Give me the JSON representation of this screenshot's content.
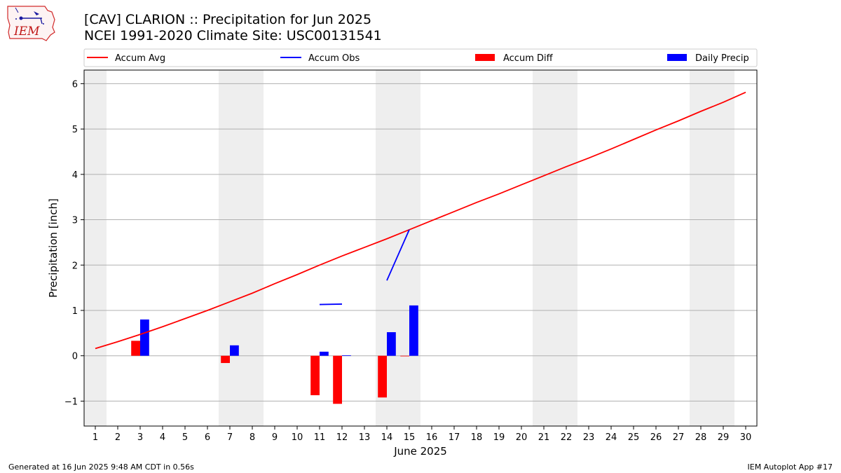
{
  "logo": {
    "text": "IEM"
  },
  "title": "[CAV] CLARION :: Precipitation for Jun 2025",
  "subtitle": "NCEI 1991-2020 Climate Site: USC00131541",
  "footer": {
    "left": "Generated at 16 Jun 2025 9:48 AM CDT in 0.56s",
    "right": "IEM Autoplot App #17"
  },
  "chart_data": {
    "type": "bar",
    "xlabel": "June 2025",
    "ylabel": "Precipitation [inch]",
    "xlim": [
      0.5,
      30.5
    ],
    "ylim": [
      -1.55,
      6.3
    ],
    "yticks": [
      6,
      5,
      4,
      3,
      2,
      1,
      0,
      -1
    ],
    "ytick_labels": [
      "6",
      "5",
      "4",
      "3",
      "2",
      "1",
      "0",
      "−1"
    ],
    "xticks": [
      1,
      2,
      3,
      4,
      5,
      6,
      7,
      8,
      9,
      10,
      11,
      12,
      13,
      14,
      15,
      16,
      17,
      18,
      19,
      20,
      21,
      22,
      23,
      24,
      25,
      26,
      27,
      28,
      29,
      30
    ],
    "xtick_labels": [
      "1",
      "2",
      "3",
      "4",
      "5",
      "6",
      "7",
      "8",
      "9",
      "10",
      "11",
      "12",
      "13",
      "14",
      "15",
      "16",
      "17",
      "18",
      "19",
      "20",
      "21",
      "22",
      "23",
      "24",
      "25",
      "26",
      "27",
      "28",
      "29",
      "30"
    ],
    "grid": "horizontal",
    "legend_placement": "top",
    "weekend_shading": [
      [
        0.5,
        1.5
      ],
      [
        6.5,
        8.5
      ],
      [
        13.5,
        15.5
      ],
      [
        20.5,
        22.5
      ],
      [
        27.5,
        29.5
      ]
    ],
    "series": [
      {
        "name": "Accum Avg",
        "kind": "line",
        "color": "#ff0000",
        "x": [
          1,
          2,
          3,
          4,
          5,
          6,
          7,
          8,
          9,
          10,
          11,
          12,
          13,
          14,
          15,
          16,
          17,
          18,
          19,
          20,
          21,
          22,
          23,
          24,
          25,
          26,
          27,
          28,
          29,
          30
        ],
        "values": [
          0.16,
          0.31,
          0.47,
          0.64,
          0.82,
          1.0,
          1.19,
          1.38,
          1.59,
          1.79,
          2.0,
          2.2,
          2.39,
          2.58,
          2.78,
          2.98,
          3.18,
          3.38,
          3.57,
          3.77,
          3.97,
          4.17,
          4.36,
          4.56,
          4.77,
          4.98,
          5.18,
          5.39,
          5.59,
          5.81
        ]
      },
      {
        "name": "Accum Obs",
        "kind": "line",
        "color": "#0000ff",
        "segments": [
          {
            "x": [
              11,
              12
            ],
            "values": [
              1.13,
              1.14
            ]
          },
          {
            "x": [
              14,
              15
            ],
            "values": [
              1.66,
              2.78
            ]
          }
        ]
      },
      {
        "name": "Accum Diff",
        "kind": "bar",
        "color": "#ff0000",
        "x": [
          3,
          7,
          11,
          12,
          14,
          15
        ],
        "values": [
          0.33,
          -0.16,
          -0.87,
          -1.06,
          -0.92,
          0.0
        ]
      },
      {
        "name": "Daily Precip",
        "kind": "bar",
        "color": "#0000ff",
        "x": [
          3,
          7,
          11,
          12,
          14,
          15
        ],
        "values": [
          0.8,
          0.23,
          0.09,
          0.01,
          0.52,
          1.11
        ]
      }
    ]
  }
}
